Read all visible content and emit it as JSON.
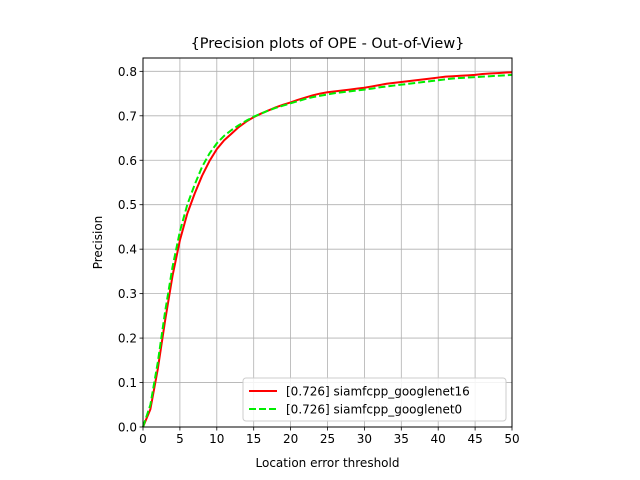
{
  "chart_data": {
    "type": "line",
    "title": "{Precision plots of OPE - Out-of-View}",
    "xlabel": "Location error threshold",
    "ylabel": "Precision",
    "xlim": [
      0,
      50
    ],
    "ylim": [
      0,
      0.83
    ],
    "xticks": [
      0,
      5,
      10,
      15,
      20,
      25,
      30,
      35,
      40,
      45,
      50
    ],
    "yticks": [
      0.0,
      0.1,
      0.2,
      0.3,
      0.4,
      0.5,
      0.6,
      0.7,
      0.8
    ],
    "xtick_labels": [
      "0",
      "5",
      "10",
      "15",
      "20",
      "25",
      "30",
      "35",
      "40",
      "45",
      "50"
    ],
    "ytick_labels": [
      "0.0",
      "0.1",
      "0.2",
      "0.3",
      "0.4",
      "0.5",
      "0.6",
      "0.7",
      "0.8"
    ],
    "grid": true,
    "legend_position": "bottom-right",
    "series": [
      {
        "name": "[0.726] siamfcpp_googlenet16",
        "color": "#ff0000",
        "style": "solid",
        "x": [
          0,
          1,
          2,
          3,
          4,
          5,
          6,
          7,
          8,
          9,
          10,
          11,
          12,
          13,
          14,
          15,
          16,
          17,
          18,
          19,
          20,
          21,
          22,
          23,
          24,
          25,
          26,
          27,
          28,
          29,
          30,
          31,
          32,
          33,
          34,
          35,
          36,
          37,
          38,
          39,
          40,
          41,
          42,
          43,
          44,
          45,
          46,
          47,
          48,
          49,
          50
        ],
        "y": [
          0,
          0.04,
          0.13,
          0.24,
          0.34,
          0.42,
          0.48,
          0.525,
          0.565,
          0.598,
          0.625,
          0.645,
          0.66,
          0.675,
          0.687,
          0.697,
          0.705,
          0.712,
          0.719,
          0.725,
          0.73,
          0.736,
          0.741,
          0.746,
          0.75,
          0.753,
          0.755,
          0.757,
          0.759,
          0.761,
          0.763,
          0.766,
          0.769,
          0.772,
          0.774,
          0.776,
          0.778,
          0.78,
          0.782,
          0.784,
          0.786,
          0.788,
          0.789,
          0.79,
          0.791,
          0.792,
          0.794,
          0.795,
          0.796,
          0.797,
          0.798
        ]
      },
      {
        "name": "[0.726] siamfcpp_googlenet0",
        "color": "#00ee00",
        "style": "dashed",
        "x": [
          0,
          1,
          2,
          3,
          4,
          5,
          6,
          7,
          8,
          9,
          10,
          11,
          12,
          13,
          14,
          15,
          16,
          17,
          18,
          19,
          20,
          21,
          22,
          23,
          24,
          25,
          26,
          27,
          28,
          29,
          30,
          31,
          32,
          33,
          34,
          35,
          36,
          37,
          38,
          39,
          40,
          41,
          42,
          43,
          44,
          45,
          46,
          47,
          48,
          49,
          50
        ],
        "y": [
          0,
          0.05,
          0.145,
          0.26,
          0.36,
          0.44,
          0.5,
          0.545,
          0.585,
          0.615,
          0.638,
          0.655,
          0.668,
          0.679,
          0.689,
          0.698,
          0.705,
          0.712,
          0.718,
          0.723,
          0.728,
          0.733,
          0.738,
          0.742,
          0.745,
          0.748,
          0.751,
          0.753,
          0.755,
          0.757,
          0.759,
          0.761,
          0.764,
          0.766,
          0.768,
          0.77,
          0.772,
          0.774,
          0.776,
          0.778,
          0.78,
          0.782,
          0.784,
          0.785,
          0.786,
          0.787,
          0.788,
          0.789,
          0.79,
          0.791,
          0.792
        ]
      }
    ]
  }
}
